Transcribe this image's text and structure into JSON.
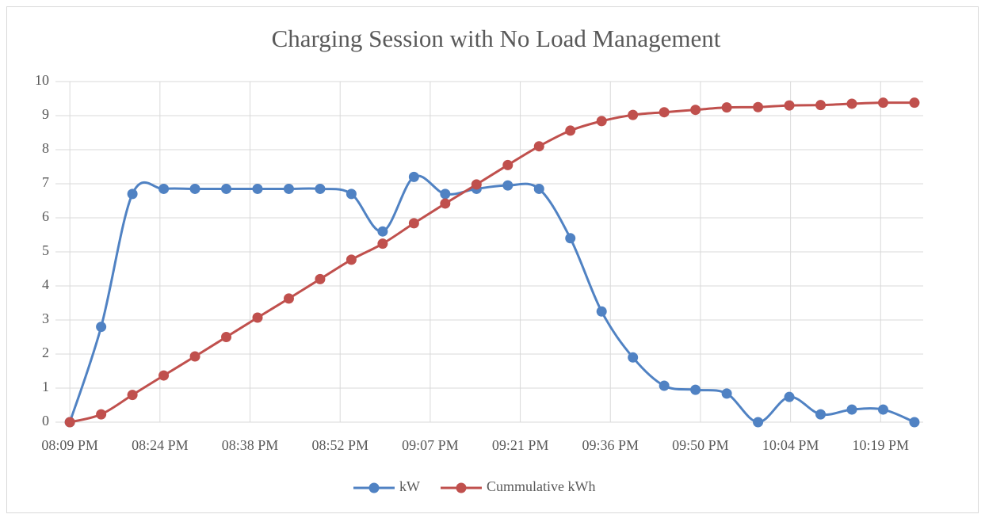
{
  "chart_data": {
    "type": "line",
    "title": "Charging Session with No Load Management",
    "x": [
      0,
      5,
      10,
      15,
      20,
      25,
      30,
      35,
      40,
      45,
      50,
      55,
      60,
      65,
      70,
      75,
      80,
      85,
      90,
      95,
      100,
      105,
      110,
      115,
      120,
      125,
      130,
      135
    ],
    "xlim": [
      -2.3,
      136.4
    ],
    "xticks": [
      {
        "value": 0,
        "label": "08:09 PM"
      },
      {
        "value": 14.4,
        "label": "08:24 PM"
      },
      {
        "value": 28.8,
        "label": "08:38 PM"
      },
      {
        "value": 43.2,
        "label": "08:52 PM"
      },
      {
        "value": 57.6,
        "label": "09:07 PM"
      },
      {
        "value": 72,
        "label": "09:21 PM"
      },
      {
        "value": 86.4,
        "label": "09:36 PM"
      },
      {
        "value": 100.8,
        "label": "09:50 PM"
      },
      {
        "value": 115.2,
        "label": "10:04 PM"
      },
      {
        "value": 129.6,
        "label": "10:19 PM"
      }
    ],
    "ylim": [
      0,
      10
    ],
    "yticks": [
      0,
      1,
      2,
      3,
      4,
      5,
      6,
      7,
      8,
      9,
      10
    ],
    "grid": true,
    "legend": "bottom",
    "smooth": true,
    "series": [
      {
        "name": "kW",
        "color": "#5082c3",
        "values": [
          0,
          2.8,
          6.7,
          6.85,
          6.85,
          6.85,
          6.85,
          6.85,
          6.85,
          6.7,
          5.6,
          7.2,
          6.7,
          6.85,
          6.95,
          6.85,
          5.4,
          3.25,
          1.9,
          1.07,
          0.95,
          0.84,
          0,
          0.74,
          0.23,
          0.37,
          0.37,
          0
        ]
      },
      {
        "name": "Cummulative kWh",
        "color": "#c0504d",
        "values": [
          0,
          0.23,
          0.8,
          1.37,
          1.93,
          2.5,
          3.07,
          3.63,
          4.2,
          4.77,
          5.24,
          5.84,
          6.42,
          6.98,
          7.55,
          8.1,
          8.56,
          8.84,
          9.02,
          9.1,
          9.17,
          9.24,
          9.25,
          9.3,
          9.31,
          9.35,
          9.38,
          9.38
        ]
      }
    ]
  }
}
